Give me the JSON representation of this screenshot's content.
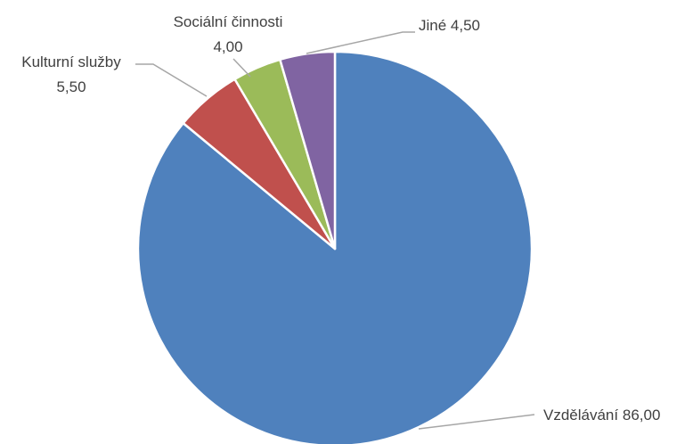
{
  "chart_data": {
    "type": "pie",
    "slices": [
      {
        "label": "Vzdělávání",
        "value": 86.0,
        "value_text": "86,00",
        "color": "#4f81bd"
      },
      {
        "label": "Kulturní služby",
        "value": 5.5,
        "value_text": "5,50",
        "color": "#c0504d"
      },
      {
        "label": "Sociální činnosti",
        "value": 4.0,
        "value_text": "4,00",
        "color": "#9bbb59"
      },
      {
        "label": "Jiné",
        "value": 4.5,
        "value_text": "4,50",
        "color": "#8064a2"
      }
    ],
    "start_angle": "12 o'clock",
    "direction": "clockwise",
    "legend": "none",
    "data_labels": "outside with leader lines"
  }
}
